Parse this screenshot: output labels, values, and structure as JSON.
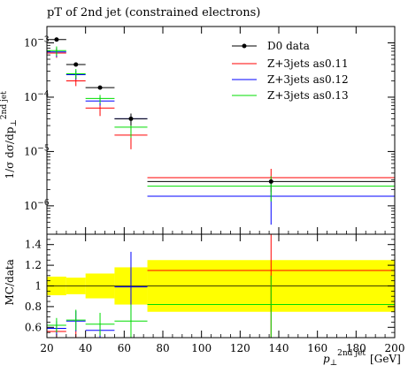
{
  "chart_data": [
    {
      "type": "line",
      "title": "pT of 2nd jet (constrained electrons)",
      "ylabel_main": "1/σ dσ/dp",
      "ylabel_sub": "⊥",
      "ylabel_sup": "2nd jet",
      "ylog": true,
      "ylim": [
        3e-07,
        0.002
      ],
      "yticks": [
        {
          "v": 0.001,
          "label": "10",
          "exp": "−3"
        },
        {
          "v": 0.0001,
          "label": "10",
          "exp": "−4"
        },
        {
          "v": 1e-05,
          "label": "10",
          "exp": "−5"
        },
        {
          "v": 1e-06,
          "label": "10",
          "exp": "−6"
        }
      ],
      "xlim": [
        20,
        200
      ],
      "legend_position": "top-right",
      "data": {
        "name": "D0 data",
        "color": "#000000",
        "points": [
          {
            "x": 25,
            "xlo": 20,
            "xhi": 30,
            "y": 0.00115
          },
          {
            "x": 35,
            "xlo": 30,
            "xhi": 40,
            "y": 0.0004
          },
          {
            "x": 47.5,
            "xlo": 40,
            "xhi": 55,
            "y": 0.00015
          },
          {
            "x": 63.5,
            "xlo": 55,
            "xhi": 72,
            "y": 4e-05,
            "ylo": 3e-05,
            "yhi": 5e-05
          },
          {
            "x": 136,
            "xlo": 72,
            "xhi": 200,
            "y": 2.8e-06
          }
        ]
      },
      "series": [
        {
          "name": "Z+3jets as0.11",
          "color": "#ff0000",
          "points": [
            {
              "xlo": 20,
              "xhi": 30,
              "y": 0.00065,
              "ylo": 0.00053,
              "yhi": 0.00078
            },
            {
              "xlo": 30,
              "xhi": 40,
              "y": 0.0002,
              "ylo": 0.00016,
              "yhi": 0.00025
            },
            {
              "xlo": 40,
              "xhi": 55,
              "y": 6.3e-05,
              "ylo": 4.5e-05,
              "yhi": 8e-05
            },
            {
              "xlo": 55,
              "xhi": 72,
              "y": 2e-05,
              "ylo": 1.1e-05,
              "yhi": 2.9e-05
            },
            {
              "xlo": 72,
              "xhi": 200,
              "y": 3.3e-06,
              "ylo": 1.8e-06,
              "yhi": 4.8e-06
            }
          ]
        },
        {
          "name": "Z+3jets as0.12",
          "color": "#0000ff",
          "points": [
            {
              "xlo": 20,
              "xhi": 30,
              "y": 0.00068,
              "ylo": 0.00055,
              "yhi": 0.00081
            },
            {
              "xlo": 30,
              "xhi": 40,
              "y": 0.00026,
              "ylo": 0.00021,
              "yhi": 0.00031
            },
            {
              "xlo": 40,
              "xhi": 55,
              "y": 8.5e-05,
              "ylo": 7e-05,
              "yhi": 0.0001
            },
            {
              "xlo": 55,
              "xhi": 72,
              "y": 4e-05,
              "ylo": 3.3e-05,
              "yhi": 4.7e-05
            },
            {
              "xlo": 72,
              "xhi": 200,
              "y": 1.5e-06,
              "ylo": 4.5e-07,
              "yhi": 2.9e-06
            }
          ]
        },
        {
          "name": "Z+3jets as0.13",
          "color": "#00dd00",
          "points": [
            {
              "xlo": 20,
              "xhi": 30,
              "y": 0.00072,
              "ylo": 0.00058,
              "yhi": 0.00086
            },
            {
              "xlo": 30,
              "xhi": 40,
              "y": 0.00027,
              "ylo": 0.00022,
              "yhi": 0.00033
            },
            {
              "xlo": 40,
              "xhi": 55,
              "y": 9.5e-05,
              "ylo": 7.8e-05,
              "yhi": 0.00011
            },
            {
              "xlo": 55,
              "xhi": 72,
              "y": 2.8e-05,
              "ylo": 1.8e-05,
              "yhi": 3.8e-05
            },
            {
              "xlo": 72,
              "xhi": 200,
              "y": 2.3e-06,
              "ylo": 1.2e-06,
              "yhi": 3.5e-06
            }
          ]
        }
      ]
    },
    {
      "type": "line",
      "ylabel": "MC/data",
      "ylim": [
        0.5,
        1.5
      ],
      "yticks": [
        0.6,
        0.8,
        1,
        1.2,
        1.4
      ],
      "xlim": [
        20,
        200
      ],
      "xticks": [
        20,
        40,
        60,
        80,
        100,
        120,
        140,
        160,
        180,
        200
      ],
      "xlabel_main": "p",
      "xlabel_sub": "⊥",
      "xlabel_sup": "2nd jet",
      "xlabel_unit": "[GeV]",
      "band": [
        {
          "xlo": 20,
          "xhi": 30,
          "lo": 0.91,
          "hi": 1.09
        },
        {
          "xlo": 30,
          "xhi": 40,
          "lo": 0.92,
          "hi": 1.08
        },
        {
          "xlo": 40,
          "xhi": 55,
          "lo": 0.88,
          "hi": 1.12
        },
        {
          "xlo": 55,
          "xhi": 72,
          "lo": 0.82,
          "hi": 1.18
        },
        {
          "xlo": 72,
          "xhi": 200,
          "lo": 0.75,
          "hi": 1.25
        }
      ],
      "series": [
        {
          "name": "Z+3jets as0.11",
          "color": "#ff0000",
          "points": [
            {
              "xlo": 20,
              "xhi": 30,
              "y": 0.56,
              "ylo": 0.5,
              "yhi": 0.62
            },
            {
              "xlo": 30,
              "xhi": 40,
              "y": 0.5,
              "ylo": 0.5,
              "yhi": 0.57
            },
            {
              "xlo": 40,
              "xhi": 55,
              "y": 0.5,
              "ylo": 0.5,
              "yhi": 0.54
            },
            {
              "xlo": 55,
              "xhi": 72,
              "y": 0.5,
              "ylo": 0.5,
              "yhi": 0.5
            },
            {
              "xlo": 72,
              "xhi": 200,
              "y": 1.15,
              "ylo": 0.5,
              "yhi": 1.5
            }
          ]
        },
        {
          "name": "Z+3jets as0.12",
          "color": "#0000ff",
          "points": [
            {
              "xlo": 20,
              "xhi": 30,
              "y": 0.59,
              "ylo": 0.52,
              "yhi": 0.66
            },
            {
              "xlo": 30,
              "xhi": 40,
              "y": 0.66,
              "ylo": 0.56,
              "yhi": 0.76
            },
            {
              "xlo": 40,
              "xhi": 55,
              "y": 0.57,
              "ylo": 0.5,
              "yhi": 0.64
            },
            {
              "xlo": 55,
              "xhi": 72,
              "y": 0.99,
              "ylo": 0.65,
              "yhi": 1.33
            },
            {
              "xlo": 72,
              "xhi": 200,
              "y": 0.5,
              "ylo": 0.5,
              "yhi": 0.5
            }
          ]
        },
        {
          "name": "Z+3jets as0.13",
          "color": "#00dd00",
          "points": [
            {
              "xlo": 20,
              "xhi": 30,
              "y": 0.62,
              "ylo": 0.55,
              "yhi": 0.69
            },
            {
              "xlo": 30,
              "xhi": 40,
              "y": 0.67,
              "ylo": 0.57,
              "yhi": 0.77
            },
            {
              "xlo": 40,
              "xhi": 55,
              "y": 0.63,
              "ylo": 0.52,
              "yhi": 0.74
            },
            {
              "xlo": 55,
              "xhi": 72,
              "y": 0.66,
              "ylo": 0.5,
              "yhi": 0.82
            },
            {
              "xlo": 72,
              "xhi": 200,
              "y": 0.82,
              "ylo": 0.5,
              "yhi": 1.1
            }
          ]
        }
      ]
    }
  ]
}
